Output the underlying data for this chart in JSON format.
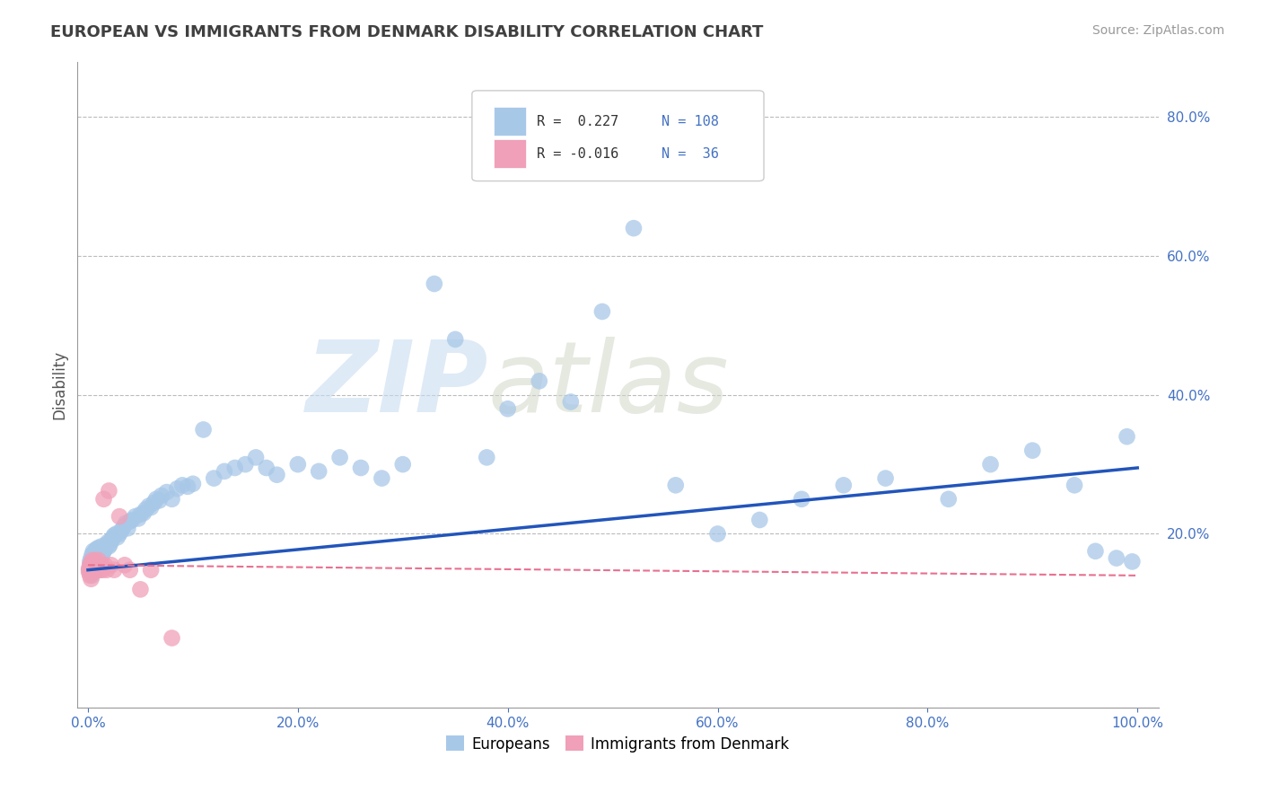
{
  "title": "EUROPEAN VS IMMIGRANTS FROM DENMARK DISABILITY CORRELATION CHART",
  "source": "Source: ZipAtlas.com",
  "ylabel": "Disability",
  "watermark": "ZIPatlas",
  "xlim": [
    -0.01,
    1.02
  ],
  "ylim": [
    -0.05,
    0.88
  ],
  "xticks": [
    0.0,
    0.2,
    0.4,
    0.6,
    0.8,
    1.0
  ],
  "yticks": [
    0.2,
    0.4,
    0.6,
    0.8
  ],
  "xtick_labels": [
    "0.0%",
    "20.0%",
    "40.0%",
    "60.0%",
    "80.0%",
    "100.0%"
  ],
  "ytick_labels": [
    "20.0%",
    "40.0%",
    "60.0%",
    "80.0%"
  ],
  "legend_r1": "R =  0.227",
  "legend_n1": "N = 108",
  "legend_r2": "R = -0.016",
  "legend_n2": "N =  36",
  "blue_color": "#A8C8E8",
  "pink_color": "#F0A0B8",
  "trend_blue": "#2255BB",
  "trend_pink": "#E87090",
  "background_color": "#FFFFFF",
  "grid_color": "#BBBBBB",
  "title_color": "#404040",
  "label_color": "#4472C4",
  "axis_color": "#999999",
  "watermark_color": "#DDDDDD",
  "blue_trend_x0": 0.0,
  "blue_trend_y0": 0.148,
  "blue_trend_x1": 1.0,
  "blue_trend_y1": 0.295,
  "pink_trend_x0": 0.0,
  "pink_trend_y0": 0.155,
  "pink_trend_x1": 1.0,
  "pink_trend_y1": 0.14,
  "europeans_x": [
    0.001,
    0.002,
    0.002,
    0.003,
    0.003,
    0.003,
    0.004,
    0.004,
    0.004,
    0.004,
    0.005,
    0.005,
    0.005,
    0.005,
    0.006,
    0.006,
    0.006,
    0.007,
    0.007,
    0.007,
    0.008,
    0.008,
    0.008,
    0.009,
    0.009,
    0.01,
    0.01,
    0.01,
    0.011,
    0.011,
    0.012,
    0.012,
    0.013,
    0.013,
    0.014,
    0.015,
    0.016,
    0.017,
    0.018,
    0.019,
    0.02,
    0.021,
    0.022,
    0.023,
    0.024,
    0.025,
    0.027,
    0.028,
    0.03,
    0.032,
    0.034,
    0.036,
    0.038,
    0.04,
    0.042,
    0.045,
    0.048,
    0.05,
    0.053,
    0.055,
    0.058,
    0.06,
    0.063,
    0.065,
    0.068,
    0.07,
    0.075,
    0.08,
    0.085,
    0.09,
    0.095,
    0.1,
    0.11,
    0.12,
    0.13,
    0.14,
    0.15,
    0.16,
    0.17,
    0.18,
    0.2,
    0.22,
    0.24,
    0.26,
    0.28,
    0.3,
    0.33,
    0.35,
    0.38,
    0.4,
    0.43,
    0.46,
    0.49,
    0.52,
    0.56,
    0.6,
    0.64,
    0.68,
    0.72,
    0.76,
    0.82,
    0.86,
    0.9,
    0.94,
    0.96,
    0.98,
    0.99,
    0.995
  ],
  "europeans_y": [
    0.148,
    0.155,
    0.16,
    0.143,
    0.152,
    0.165,
    0.14,
    0.158,
    0.162,
    0.17,
    0.145,
    0.155,
    0.165,
    0.175,
    0.15,
    0.16,
    0.172,
    0.148,
    0.162,
    0.175,
    0.152,
    0.165,
    0.178,
    0.155,
    0.17,
    0.158,
    0.168,
    0.18,
    0.162,
    0.175,
    0.165,
    0.178,
    0.168,
    0.182,
    0.172,
    0.175,
    0.178,
    0.182,
    0.185,
    0.188,
    0.182,
    0.185,
    0.19,
    0.192,
    0.195,
    0.198,
    0.2,
    0.195,
    0.2,
    0.205,
    0.21,
    0.215,
    0.208,
    0.218,
    0.22,
    0.225,
    0.222,
    0.228,
    0.23,
    0.235,
    0.24,
    0.238,
    0.245,
    0.25,
    0.248,
    0.255,
    0.26,
    0.25,
    0.265,
    0.27,
    0.268,
    0.272,
    0.35,
    0.28,
    0.29,
    0.295,
    0.3,
    0.31,
    0.295,
    0.285,
    0.3,
    0.29,
    0.31,
    0.295,
    0.28,
    0.3,
    0.56,
    0.48,
    0.31,
    0.38,
    0.42,
    0.39,
    0.52,
    0.64,
    0.27,
    0.2,
    0.22,
    0.25,
    0.27,
    0.28,
    0.25,
    0.3,
    0.32,
    0.27,
    0.175,
    0.165,
    0.34,
    0.16
  ],
  "denmark_x": [
    0.001,
    0.001,
    0.002,
    0.002,
    0.003,
    0.003,
    0.003,
    0.004,
    0.004,
    0.005,
    0.005,
    0.006,
    0.006,
    0.007,
    0.007,
    0.008,
    0.008,
    0.009,
    0.01,
    0.01,
    0.011,
    0.012,
    0.013,
    0.014,
    0.015,
    0.016,
    0.018,
    0.02,
    0.022,
    0.025,
    0.03,
    0.035,
    0.04,
    0.05,
    0.06,
    0.08
  ],
  "denmark_y": [
    0.15,
    0.145,
    0.155,
    0.14,
    0.148,
    0.158,
    0.135,
    0.152,
    0.162,
    0.145,
    0.155,
    0.148,
    0.158,
    0.152,
    0.162,
    0.148,
    0.158,
    0.152,
    0.148,
    0.162,
    0.155,
    0.148,
    0.155,
    0.148,
    0.25,
    0.155,
    0.148,
    0.262,
    0.155,
    0.148,
    0.225,
    0.155,
    0.148,
    0.12,
    0.148,
    0.05
  ]
}
